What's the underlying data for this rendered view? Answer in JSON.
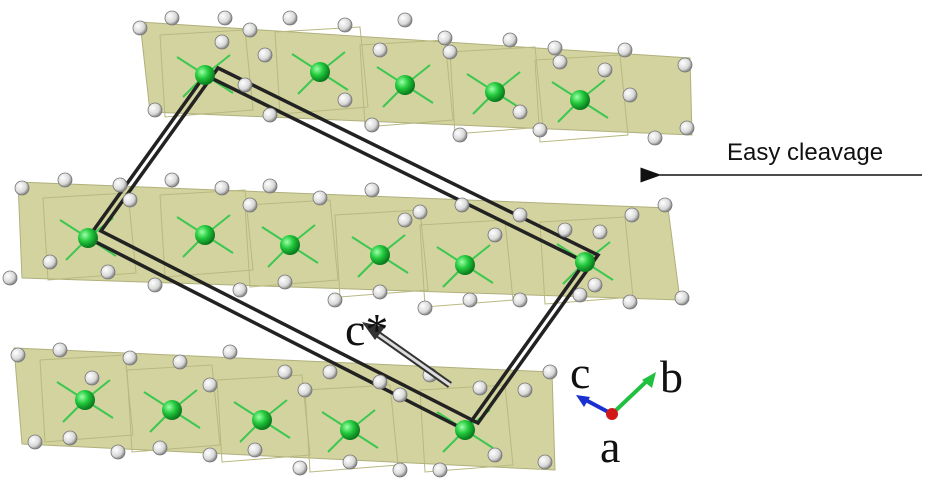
{
  "annotation": "Easy cleavage",
  "vector_label": "c*",
  "axes": {
    "c": "c",
    "b": "b",
    "a": "a"
  }
}
